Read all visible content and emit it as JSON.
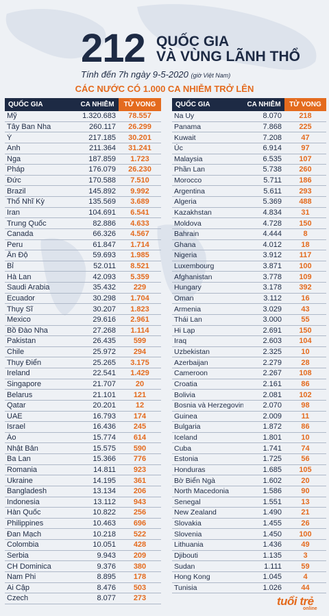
{
  "header": {
    "big_number": "212",
    "title_line1": "QUỐC GIA",
    "title_line2": "VÀ VÙNG LÃNH THỔ",
    "subtitle": "Tính đến 7h ngày 9-5-2020",
    "subtitle_note": "(giờ Việt Nam)",
    "section_title": "CÁC NƯỚC CÓ 1.000 CA NHIỄM TRỞ LÊN"
  },
  "columns": {
    "country": "QUỐC GIA",
    "cases": "CA NHIỄM",
    "deaths": "TỬ VONG"
  },
  "colors": {
    "navy": "#1d2a44",
    "orange": "#e46b1e"
  },
  "left_rows": [
    {
      "country": "Mỹ",
      "cases": "1.320.683",
      "deaths": "78.557"
    },
    {
      "country": "Tây Ban Nha",
      "cases": "260.117",
      "deaths": "26.299"
    },
    {
      "country": "Ý",
      "cases": "217.185",
      "deaths": "30.201"
    },
    {
      "country": "Anh",
      "cases": "211.364",
      "deaths": "31.241"
    },
    {
      "country": "Nga",
      "cases": "187.859",
      "deaths": "1.723"
    },
    {
      "country": "Pháp",
      "cases": "176.079",
      "deaths": "26.230"
    },
    {
      "country": "Đức",
      "cases": "170.588",
      "deaths": "7.510"
    },
    {
      "country": "Brazil",
      "cases": "145.892",
      "deaths": "9.992"
    },
    {
      "country": "Thổ Nhĩ Kỳ",
      "cases": "135.569",
      "deaths": "3.689"
    },
    {
      "country": "Iran",
      "cases": "104.691",
      "deaths": "6.541"
    },
    {
      "country": "Trung Quốc",
      "cases": "82.886",
      "deaths": "4.633"
    },
    {
      "country": "Canada",
      "cases": "66.326",
      "deaths": "4.567"
    },
    {
      "country": "Peru",
      "cases": "61.847",
      "deaths": "1.714"
    },
    {
      "country": "Ấn Độ",
      "cases": "59.693",
      "deaths": "1.985"
    },
    {
      "country": "Bỉ",
      "cases": "52.011",
      "deaths": "8.521"
    },
    {
      "country": "Hà Lan",
      "cases": "42.093",
      "deaths": "5.359"
    },
    {
      "country": "Saudi Arabia",
      "cases": "35.432",
      "deaths": "229"
    },
    {
      "country": "Ecuador",
      "cases": "30.298",
      "deaths": "1.704"
    },
    {
      "country": "Thụy Sĩ",
      "cases": "30.207",
      "deaths": "1.823"
    },
    {
      "country": "Mexico",
      "cases": "29.616",
      "deaths": "2.961"
    },
    {
      "country": "Bồ Đào Nha",
      "cases": "27.268",
      "deaths": "1.114"
    },
    {
      "country": "Pakistan",
      "cases": "26.435",
      "deaths": "599"
    },
    {
      "country": "Chile",
      "cases": "25.972",
      "deaths": "294"
    },
    {
      "country": "Thụy Điển",
      "cases": "25.265",
      "deaths": "3.175"
    },
    {
      "country": "Ireland",
      "cases": "22.541",
      "deaths": "1.429"
    },
    {
      "country": "Singapore",
      "cases": "21.707",
      "deaths": "20"
    },
    {
      "country": "Belarus",
      "cases": "21.101",
      "deaths": "121"
    },
    {
      "country": "Qatar",
      "cases": "20.201",
      "deaths": "12"
    },
    {
      "country": "UAE",
      "cases": "16.793",
      "deaths": "174"
    },
    {
      "country": "Israel",
      "cases": "16.436",
      "deaths": "245"
    },
    {
      "country": "Áo",
      "cases": "15.774",
      "deaths": "614"
    },
    {
      "country": "Nhật Bản",
      "cases": "15.575",
      "deaths": "590"
    },
    {
      "country": "Ba Lan",
      "cases": "15.366",
      "deaths": "776"
    },
    {
      "country": "Romania",
      "cases": "14.811",
      "deaths": "923"
    },
    {
      "country": "Ukraine",
      "cases": "14.195",
      "deaths": "361"
    },
    {
      "country": "Bangladesh",
      "cases": "13.134",
      "deaths": "206"
    },
    {
      "country": "Indonesia",
      "cases": "13.112",
      "deaths": "943"
    },
    {
      "country": "Hàn Quốc",
      "cases": "10.822",
      "deaths": "256"
    },
    {
      "country": "Philippines",
      "cases": "10.463",
      "deaths": "696"
    },
    {
      "country": "Đan Mạch",
      "cases": "10.218",
      "deaths": "522"
    },
    {
      "country": "Colombia",
      "cases": "10.051",
      "deaths": "428"
    },
    {
      "country": "Serbia",
      "cases": "9.943",
      "deaths": "209"
    },
    {
      "country": "CH Dominica",
      "cases": "9.376",
      "deaths": "380"
    },
    {
      "country": "Nam Phi",
      "cases": "8.895",
      "deaths": "178"
    },
    {
      "country": "Ai Cập",
      "cases": "8.476",
      "deaths": "503"
    },
    {
      "country": "Czech",
      "cases": "8.077",
      "deaths": "273"
    }
  ],
  "right_rows": [
    {
      "country": "Na Uy",
      "cases": "8.070",
      "deaths": "218"
    },
    {
      "country": "Panama",
      "cases": "7.868",
      "deaths": "225"
    },
    {
      "country": "Kuwait",
      "cases": "7.208",
      "deaths": "47"
    },
    {
      "country": "Úc",
      "cases": "6.914",
      "deaths": "97"
    },
    {
      "country": "Malaysia",
      "cases": "6.535",
      "deaths": "107"
    },
    {
      "country": "Phần Lan",
      "cases": "5.738",
      "deaths": "260"
    },
    {
      "country": "Morocco",
      "cases": "5.711",
      "deaths": "186"
    },
    {
      "country": "Argentina",
      "cases": "5.611",
      "deaths": "293"
    },
    {
      "country": "Algeria",
      "cases": "5.369",
      "deaths": "488"
    },
    {
      "country": "Kazakhstan",
      "cases": "4.834",
      "deaths": "31"
    },
    {
      "country": "Moldova",
      "cases": "4.728",
      "deaths": "150"
    },
    {
      "country": "Bahrain",
      "cases": "4.444",
      "deaths": "8"
    },
    {
      "country": "Ghana",
      "cases": "4.012",
      "deaths": "18"
    },
    {
      "country": "Nigeria",
      "cases": "3.912",
      "deaths": "117"
    },
    {
      "country": "Luxembourg",
      "cases": "3.871",
      "deaths": "100"
    },
    {
      "country": "Afghanistan",
      "cases": "3.778",
      "deaths": "109"
    },
    {
      "country": "Hungary",
      "cases": "3.178",
      "deaths": "392"
    },
    {
      "country": "Oman",
      "cases": "3.112",
      "deaths": "16"
    },
    {
      "country": "Armenia",
      "cases": "3.029",
      "deaths": "43"
    },
    {
      "country": "Thái Lan",
      "cases": "3.000",
      "deaths": "55"
    },
    {
      "country": "Hi Lạp",
      "cases": "2.691",
      "deaths": "150"
    },
    {
      "country": "Iraq",
      "cases": "2.603",
      "deaths": "104"
    },
    {
      "country": "Uzbekistan",
      "cases": "2.325",
      "deaths": "10"
    },
    {
      "country": "Azerbaijan",
      "cases": "2.279",
      "deaths": "28"
    },
    {
      "country": "Cameroon",
      "cases": "2.267",
      "deaths": "108"
    },
    {
      "country": "Croatia",
      "cases": "2.161",
      "deaths": "86"
    },
    {
      "country": "Bolivia",
      "cases": "2.081",
      "deaths": "102"
    },
    {
      "country": "Bosnia và Herzegovina",
      "cases": "2.070",
      "deaths": "98"
    },
    {
      "country": "Guinea",
      "cases": "2.009",
      "deaths": "11"
    },
    {
      "country": "Bulgaria",
      "cases": "1.872",
      "deaths": "86"
    },
    {
      "country": "Iceland",
      "cases": "1.801",
      "deaths": "10"
    },
    {
      "country": "Cuba",
      "cases": "1.741",
      "deaths": "74"
    },
    {
      "country": "Estonia",
      "cases": "1.725",
      "deaths": "56"
    },
    {
      "country": "Honduras",
      "cases": "1.685",
      "deaths": "105"
    },
    {
      "country": "Bờ Biển Ngà",
      "cases": "1.602",
      "deaths": "20"
    },
    {
      "country": "North Macedonia",
      "cases": "1.586",
      "deaths": "90"
    },
    {
      "country": "Senegal",
      "cases": "1.551",
      "deaths": "13"
    },
    {
      "country": "New Zealand",
      "cases": "1.490",
      "deaths": "21"
    },
    {
      "country": "Slovakia",
      "cases": "1.455",
      "deaths": "26"
    },
    {
      "country": "Slovenia",
      "cases": "1.450",
      "deaths": "100"
    },
    {
      "country": "Lithuania",
      "cases": "1.436",
      "deaths": "49"
    },
    {
      "country": "Djibouti",
      "cases": "1.135",
      "deaths": "3"
    },
    {
      "country": "Sudan",
      "cases": "1.111",
      "deaths": "59"
    },
    {
      "country": "Hong Kong",
      "cases": "1.045",
      "deaths": "4"
    },
    {
      "country": "Tunisia",
      "cases": "1.026",
      "deaths": "44"
    }
  ],
  "logo": {
    "name": "tuổi trẻ",
    "sub": "online"
  }
}
